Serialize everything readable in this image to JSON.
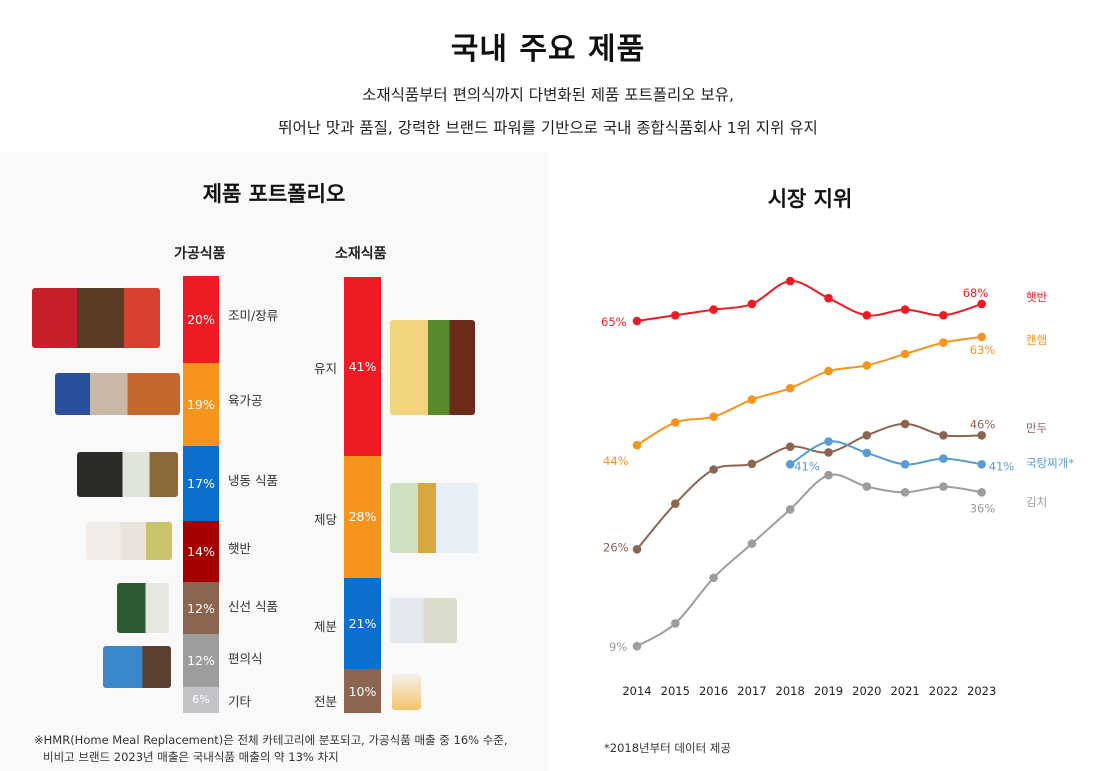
{
  "header": {
    "title": "국내 주요 제품",
    "subtitle_line1": "소재식품부터 편의식까지 다변화된 제품 포트폴리오 보유,",
    "subtitle_line2": "뛰어난 맛과 품질, 강력한 브랜드 파워를 기반으로 국내 종합식품회사 1위 지위 유지"
  },
  "portfolio": {
    "title": "제품 포트폴리오",
    "footnote_line1": "※HMR(Home Meal Replacement)은 전체 카테고리에 분포되고, 가공식품 매출 중 16% 수준,",
    "footnote_line2": "비비고 브랜드 2023년 매출은 국내식품 매출의 약 13% 차지"
  },
  "market": {
    "title": "시장 지위",
    "footnote": "*2018년부터 데이터 제공"
  },
  "chart_data": [
    {
      "type": "bar",
      "subtype": "stacked-100",
      "title": "가공식품",
      "categories": [
        "조미/장류",
        "육가공",
        "냉동 식품",
        "햇반",
        "신선 식품",
        "편의식",
        "기타"
      ],
      "values": [
        20,
        19,
        17,
        14,
        12,
        12,
        6
      ],
      "labels": [
        "20%",
        "19%",
        "17%",
        "14%",
        "12%",
        "12%",
        "6%"
      ],
      "colors": [
        "#ed1c24",
        "#f7941d",
        "#0b6fcd",
        "#a50000",
        "#8b6550",
        "#9d9d9d",
        "#c4c4c8"
      ],
      "product_images": [
        "다시다·해찬들 장류",
        "스팸·햄·소시지",
        "피자·만두·돈까스",
        "햇반",
        "김치·신선 식품",
        "컵반·국탕"
      ]
    },
    {
      "type": "bar",
      "subtype": "stacked-100",
      "title": "소재식품",
      "categories": [
        "유지",
        "제당",
        "제분",
        "전분"
      ],
      "values": [
        41,
        28,
        21,
        10
      ],
      "labels": [
        "41%",
        "28%",
        "21%",
        "10%"
      ],
      "colors": [
        "#ed1c24",
        "#f7941d",
        "#0b6fcd",
        "#8b6550"
      ],
      "product_images": [
        "식용유·올리브유·참기름",
        "올리고당·설탕",
        "밀가루",
        "전분"
      ]
    },
    {
      "type": "line",
      "title": "시장 지위",
      "x": [
        2014,
        2015,
        2016,
        2017,
        2018,
        2019,
        2020,
        2021,
        2022,
        2023
      ],
      "x_tick_labels": [
        "2014",
        "2015",
        "2016",
        "2017",
        "2018",
        "2019",
        "2020",
        "2021",
        "2022",
        "2023"
      ],
      "y_unit": "%",
      "grid": false,
      "legend": "right",
      "series": [
        {
          "name": "햇반",
          "color": "#ed1c24",
          "values": [
            65,
            66,
            67,
            68,
            72,
            69,
            66,
            67,
            66,
            68
          ],
          "start_label": "65%",
          "end_label": "68%"
        },
        {
          "name": "캔햄",
          "color": "#f7941d",
          "values": [
            44,
            48,
            49,
            52,
            54,
            57,
            58,
            60,
            62,
            63
          ],
          "start_label": "44%",
          "end_label": "63%"
        },
        {
          "name": "만두",
          "color": "#8b6550",
          "values": [
            26,
            34,
            40,
            41,
            44,
            43,
            46,
            48,
            46,
            46
          ],
          "start_label": "26%",
          "end_label": "46%"
        },
        {
          "name": "국탕찌개*",
          "color": "#5b9bd5",
          "values": [
            null,
            null,
            null,
            null,
            41,
            45,
            43,
            41,
            42,
            41
          ],
          "start_label": "41%",
          "end_label": "41%"
        },
        {
          "name": "김치",
          "color": "#9d9d9d",
          "values": [
            9,
            13,
            21,
            27,
            33,
            39,
            37,
            36,
            37,
            36
          ],
          "start_label": "9%",
          "end_label": "36%"
        }
      ]
    }
  ]
}
